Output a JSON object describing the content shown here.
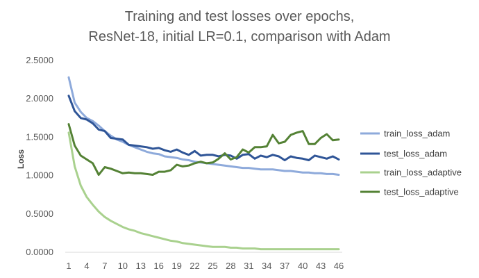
{
  "chart_data": {
    "type": "line",
    "title_lines": [
      "Training and test losses over epochs,",
      "ResNet-18, initial LR=0.1, comparison with Adam"
    ],
    "xlabel": "",
    "ylabel": "Loss",
    "ylim": [
      0,
      2.5
    ],
    "y_ticks": [
      0,
      0.5,
      1.0,
      1.5,
      2.0,
      2.5
    ],
    "y_tick_labels": [
      "0.0000",
      "0.5000",
      "1.0000",
      "1.5000",
      "2.0000",
      "2.5000"
    ],
    "x": [
      1,
      2,
      3,
      4,
      5,
      6,
      7,
      8,
      9,
      10,
      11,
      12,
      13,
      14,
      15,
      16,
      17,
      18,
      19,
      20,
      21,
      22,
      23,
      24,
      25,
      26,
      27,
      28,
      29,
      30,
      31,
      32,
      33,
      34,
      35,
      36,
      37,
      38,
      39,
      40,
      41,
      42,
      43,
      44,
      45,
      46
    ],
    "x_tick_labels": [
      "1",
      "4",
      "7",
      "10",
      "13",
      "16",
      "19",
      "22",
      "25",
      "28",
      "31",
      "34",
      "37",
      "40",
      "43",
      "46"
    ],
    "x_tick_values": [
      1,
      4,
      7,
      10,
      13,
      16,
      19,
      22,
      25,
      28,
      31,
      34,
      37,
      40,
      43,
      46
    ],
    "grid": false,
    "legend_position": "right",
    "series": [
      {
        "name": "train_loss_adam",
        "color": "#8EAADB",
        "values": [
          2.28,
          1.95,
          1.83,
          1.75,
          1.71,
          1.65,
          1.58,
          1.52,
          1.47,
          1.44,
          1.4,
          1.37,
          1.34,
          1.31,
          1.29,
          1.28,
          1.25,
          1.24,
          1.23,
          1.21,
          1.2,
          1.18,
          1.17,
          1.16,
          1.15,
          1.14,
          1.13,
          1.12,
          1.11,
          1.1,
          1.1,
          1.09,
          1.08,
          1.08,
          1.08,
          1.07,
          1.06,
          1.06,
          1.05,
          1.04,
          1.04,
          1.03,
          1.03,
          1.02,
          1.02,
          1.01
        ]
      },
      {
        "name": "test_loss_adam",
        "color": "#2F5597",
        "values": [
          2.04,
          1.84,
          1.75,
          1.73,
          1.68,
          1.6,
          1.58,
          1.49,
          1.48,
          1.47,
          1.4,
          1.39,
          1.38,
          1.37,
          1.35,
          1.36,
          1.33,
          1.31,
          1.34,
          1.3,
          1.27,
          1.32,
          1.26,
          1.27,
          1.27,
          1.25,
          1.27,
          1.26,
          1.22,
          1.27,
          1.28,
          1.22,
          1.26,
          1.24,
          1.27,
          1.25,
          1.2,
          1.25,
          1.23,
          1.22,
          1.2,
          1.26,
          1.24,
          1.22,
          1.25,
          1.21
        ]
      },
      {
        "name": "train_loss_adaptive",
        "color": "#A9D18E",
        "values": [
          1.56,
          1.12,
          0.87,
          0.72,
          0.62,
          0.53,
          0.46,
          0.41,
          0.37,
          0.33,
          0.3,
          0.28,
          0.25,
          0.23,
          0.21,
          0.19,
          0.17,
          0.15,
          0.14,
          0.12,
          0.11,
          0.1,
          0.09,
          0.08,
          0.07,
          0.07,
          0.07,
          0.06,
          0.06,
          0.05,
          0.05,
          0.05,
          0.04,
          0.04,
          0.04,
          0.04,
          0.04,
          0.04,
          0.04,
          0.04,
          0.04,
          0.04,
          0.04,
          0.04,
          0.04,
          0.04
        ]
      },
      {
        "name": "test_loss_adaptive",
        "color": "#548235",
        "values": [
          1.67,
          1.39,
          1.26,
          1.21,
          1.16,
          1.01,
          1.11,
          1.09,
          1.06,
          1.03,
          1.04,
          1.03,
          1.03,
          1.02,
          1.01,
          1.05,
          1.05,
          1.07,
          1.14,
          1.12,
          1.13,
          1.16,
          1.18,
          1.16,
          1.17,
          1.22,
          1.29,
          1.21,
          1.24,
          1.34,
          1.3,
          1.37,
          1.37,
          1.38,
          1.53,
          1.42,
          1.44,
          1.53,
          1.56,
          1.58,
          1.41,
          1.41,
          1.49,
          1.54,
          1.46,
          1.47
        ]
      }
    ]
  }
}
